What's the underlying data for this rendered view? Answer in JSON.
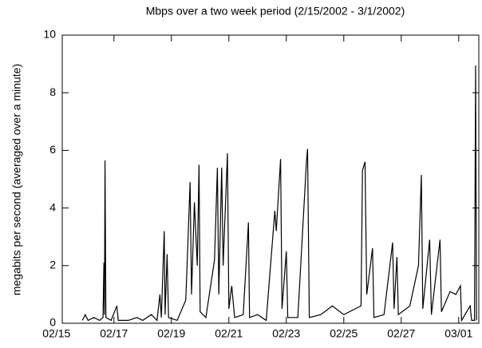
{
  "chart_data": {
    "type": "line",
    "title": "Mbps over a two week period (2/15/2002 - 3/1/2002)",
    "y_label": "megabits per second (averaged over a minute)",
    "xlim": [
      0.2,
      14.7
    ],
    "xticks": [
      {
        "value": 0,
        "label": "02/15"
      },
      {
        "value": 2,
        "label": "02/17"
      },
      {
        "value": 4,
        "label": "02/19"
      },
      {
        "value": 6,
        "label": "02/21"
      },
      {
        "value": 8,
        "label": "02/23"
      },
      {
        "value": 10,
        "label": "02/25"
      },
      {
        "value": 12,
        "label": "02/27"
      },
      {
        "value": 14,
        "label": "03/01"
      }
    ],
    "ylim": [
      0,
      10
    ],
    "yticks": [
      0,
      2,
      4,
      6,
      8,
      10
    ],
    "color": "#000000",
    "x": [
      0.9,
      1.0,
      1.1,
      1.3,
      1.5,
      1.62,
      1.65,
      1.67,
      1.69,
      1.72,
      1.9,
      2.1,
      2.15,
      2.5,
      2.8,
      3.0,
      3.3,
      3.5,
      3.6,
      3.65,
      3.75,
      3.78,
      3.85,
      3.9,
      4.2,
      4.5,
      4.6,
      4.65,
      4.7,
      4.8,
      4.9,
      4.96,
      5.0,
      5.2,
      5.5,
      5.6,
      5.65,
      5.75,
      5.8,
      5.95,
      6.0,
      6.1,
      6.2,
      6.5,
      6.68,
      6.72,
      7.0,
      7.3,
      7.6,
      7.65,
      7.8,
      7.85,
      8.0,
      8.05,
      8.4,
      8.7,
      8.74,
      8.8,
      9.2,
      9.6,
      10.0,
      10.4,
      10.6,
      10.65,
      10.74,
      10.8,
      11.0,
      11.05,
      11.4,
      11.7,
      11.75,
      11.85,
      11.9,
      12.3,
      12.6,
      12.7,
      12.75,
      12.99,
      13.05,
      13.35,
      13.4,
      13.7,
      13.9,
      14.06,
      14.1,
      14.4,
      14.45,
      14.55,
      14.59,
      14.62
    ],
    "values": [
      0.1,
      0.3,
      0.1,
      0.2,
      0.1,
      0.2,
      2.1,
      0.3,
      5.65,
      0.2,
      0.1,
      0.6,
      0.1,
      0.1,
      0.2,
      0.1,
      0.3,
      0.1,
      1.0,
      0.2,
      3.2,
      0.3,
      2.4,
      0.2,
      0.1,
      0.8,
      3.5,
      4.9,
      1.0,
      4.2,
      2.0,
      5.5,
      0.4,
      0.2,
      2.2,
      5.4,
      1.0,
      5.4,
      2.0,
      5.9,
      0.5,
      1.3,
      0.2,
      0.3,
      3.5,
      0.2,
      0.3,
      0.1,
      3.9,
      3.2,
      5.7,
      0.5,
      2.5,
      0.2,
      0.2,
      5.6,
      6.05,
      0.2,
      0.3,
      0.6,
      0.3,
      0.5,
      0.6,
      5.3,
      5.6,
      1.0,
      2.6,
      0.2,
      0.3,
      2.8,
      0.5,
      2.3,
      0.3,
      0.6,
      2.0,
      5.15,
      0.5,
      2.9,
      0.3,
      2.9,
      0.4,
      1.1,
      1.0,
      1.3,
      0.1,
      0.6,
      0.1,
      0.1,
      8.95,
      0.1
    ]
  }
}
